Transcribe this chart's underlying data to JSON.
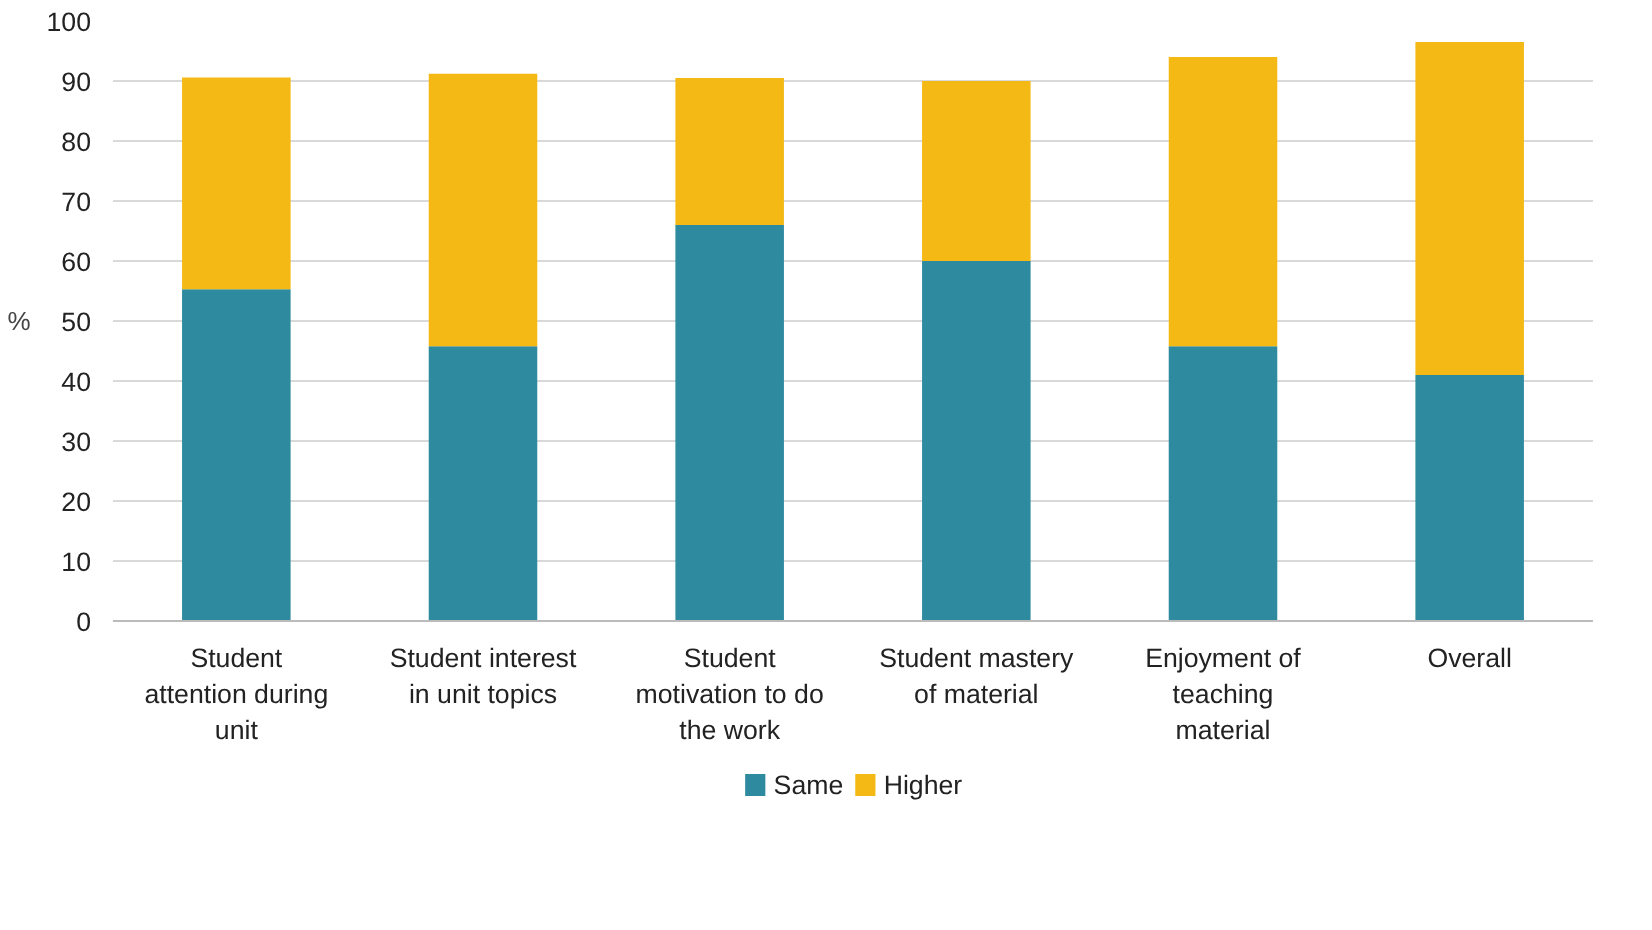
{
  "chart_data": {
    "type": "bar",
    "stacked": true,
    "ylabel": "%",
    "categories": [
      "Student attention during unit",
      "Student interest in unit topics",
      "Student motivation to do the work",
      "Student mastery of material",
      "Enjoyment of teaching material",
      "Overall"
    ],
    "series": [
      {
        "name": "Same",
        "color": "#2e8a9e",
        "values": [
          55.3,
          45.8,
          66,
          60,
          45.8,
          41
        ]
      },
      {
        "name": "Higher",
        "color": "#f5b915",
        "values": [
          35.3,
          45.4,
          24.5,
          30,
          48.2,
          55.5
        ]
      }
    ],
    "ylim": [
      0,
      100
    ],
    "yticks": [
      0,
      10,
      20,
      30,
      40,
      50,
      60,
      70,
      80,
      90,
      100
    ],
    "grid": "y",
    "legend": "bottom"
  }
}
